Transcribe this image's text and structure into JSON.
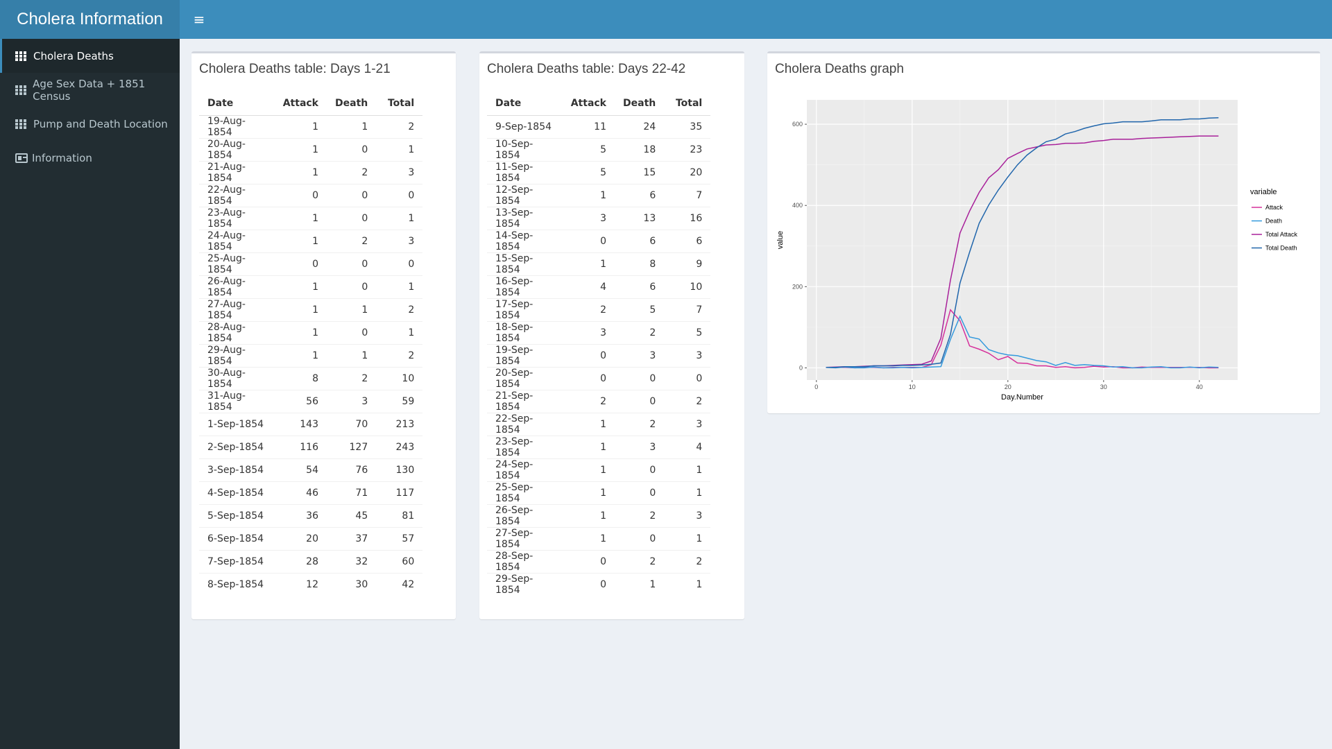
{
  "app": {
    "title": "Cholera Information",
    "menu_icon": "hamburger-icon"
  },
  "sidebar": {
    "items": [
      {
        "label": "Cholera Deaths",
        "icon": "table-icon",
        "active": true
      },
      {
        "label": "Age Sex Data + 1851 Census",
        "icon": "table-icon",
        "active": false
      },
      {
        "label": "Pump and Death Location",
        "icon": "table-icon",
        "active": false
      },
      {
        "label": "Information",
        "icon": "id-card-icon",
        "active": false
      }
    ]
  },
  "table1": {
    "title": "Cholera Deaths table: Days 1-21",
    "headers": [
      "Date",
      "Attack",
      "Death",
      "Total"
    ],
    "rows": [
      [
        "19-Aug-1854",
        "1",
        "1",
        "2"
      ],
      [
        "20-Aug-1854",
        "1",
        "0",
        "1"
      ],
      [
        "21-Aug-1854",
        "1",
        "2",
        "3"
      ],
      [
        "22-Aug-1854",
        "0",
        "0",
        "0"
      ],
      [
        "23-Aug-1854",
        "1",
        "0",
        "1"
      ],
      [
        "24-Aug-1854",
        "1",
        "2",
        "3"
      ],
      [
        "25-Aug-1854",
        "0",
        "0",
        "0"
      ],
      [
        "26-Aug-1854",
        "1",
        "0",
        "1"
      ],
      [
        "27-Aug-1854",
        "1",
        "1",
        "2"
      ],
      [
        "28-Aug-1854",
        "1",
        "0",
        "1"
      ],
      [
        "29-Aug-1854",
        "1",
        "1",
        "2"
      ],
      [
        "30-Aug-1854",
        "8",
        "2",
        "10"
      ],
      [
        "31-Aug-1854",
        "56",
        "3",
        "59"
      ],
      [
        "1-Sep-1854",
        "143",
        "70",
        "213"
      ],
      [
        "2-Sep-1854",
        "116",
        "127",
        "243"
      ],
      [
        "3-Sep-1854",
        "54",
        "76",
        "130"
      ],
      [
        "4-Sep-1854",
        "46",
        "71",
        "117"
      ],
      [
        "5-Sep-1854",
        "36",
        "45",
        "81"
      ],
      [
        "6-Sep-1854",
        "20",
        "37",
        "57"
      ],
      [
        "7-Sep-1854",
        "28",
        "32",
        "60"
      ],
      [
        "8-Sep-1854",
        "12",
        "30",
        "42"
      ]
    ]
  },
  "table2": {
    "title": "Cholera Deaths table: Days 22-42",
    "headers": [
      "Date",
      "Attack",
      "Death",
      "Total"
    ],
    "rows": [
      [
        "9-Sep-1854",
        "11",
        "24",
        "35"
      ],
      [
        "10-Sep-1854",
        "5",
        "18",
        "23"
      ],
      [
        "11-Sep-1854",
        "5",
        "15",
        "20"
      ],
      [
        "12-Sep-1854",
        "1",
        "6",
        "7"
      ],
      [
        "13-Sep-1854",
        "3",
        "13",
        "16"
      ],
      [
        "14-Sep-1854",
        "0",
        "6",
        "6"
      ],
      [
        "15-Sep-1854",
        "1",
        "8",
        "9"
      ],
      [
        "16-Sep-1854",
        "4",
        "6",
        "10"
      ],
      [
        "17-Sep-1854",
        "2",
        "5",
        "7"
      ],
      [
        "18-Sep-1854",
        "3",
        "2",
        "5"
      ],
      [
        "19-Sep-1854",
        "0",
        "3",
        "3"
      ],
      [
        "20-Sep-1854",
        "0",
        "0",
        "0"
      ],
      [
        "21-Sep-1854",
        "2",
        "0",
        "2"
      ],
      [
        "22-Sep-1854",
        "1",
        "2",
        "3"
      ],
      [
        "23-Sep-1854",
        "1",
        "3",
        "4"
      ],
      [
        "24-Sep-1854",
        "1",
        "0",
        "1"
      ],
      [
        "25-Sep-1854",
        "1",
        "0",
        "1"
      ],
      [
        "26-Sep-1854",
        "1",
        "2",
        "3"
      ],
      [
        "27-Sep-1854",
        "1",
        "0",
        "1"
      ],
      [
        "28-Sep-1854",
        "0",
        "2",
        "2"
      ],
      [
        "29-Sep-1854",
        "0",
        "1",
        "1"
      ]
    ]
  },
  "graph": {
    "title": "Cholera Deaths graph"
  },
  "chart_data": {
    "type": "line",
    "xlabel": "Day.Number",
    "ylabel": "value",
    "xlim": [
      0,
      42
    ],
    "ylim": [
      0,
      620
    ],
    "xticks": [
      0,
      10,
      20,
      30,
      40
    ],
    "yticks": [
      0,
      200,
      400,
      600
    ],
    "grid": true,
    "legend_title": "variable",
    "legend_position": "right",
    "x": [
      1,
      2,
      3,
      4,
      5,
      6,
      7,
      8,
      9,
      10,
      11,
      12,
      13,
      14,
      15,
      16,
      17,
      18,
      19,
      20,
      21,
      22,
      23,
      24,
      25,
      26,
      27,
      28,
      29,
      30,
      31,
      32,
      33,
      34,
      35,
      36,
      37,
      38,
      39,
      40,
      41,
      42
    ],
    "series": [
      {
        "name": "Attack",
        "color": "#d6309b",
        "values": [
          1,
          1,
          1,
          0,
          1,
          1,
          0,
          1,
          1,
          1,
          1,
          8,
          56,
          143,
          116,
          54,
          46,
          36,
          20,
          28,
          12,
          11,
          5,
          5,
          1,
          3,
          0,
          1,
          4,
          2,
          3,
          0,
          0,
          2,
          1,
          1,
          1,
          1,
          1,
          1,
          0,
          0
        ]
      },
      {
        "name": "Death",
        "color": "#3399dd",
        "values": [
          1,
          0,
          2,
          0,
          0,
          2,
          0,
          0,
          1,
          0,
          1,
          2,
          3,
          70,
          127,
          76,
          71,
          45,
          37,
          32,
          30,
          24,
          18,
          15,
          6,
          13,
          6,
          8,
          6,
          5,
          2,
          3,
          0,
          0,
          2,
          3,
          0,
          0,
          2,
          0,
          2,
          1
        ]
      },
      {
        "name": "Total Attack",
        "color": "#a8209a",
        "values": [
          1,
          2,
          3,
          3,
          4,
          5,
          5,
          6,
          7,
          8,
          9,
          17,
          73,
          216,
          332,
          386,
          432,
          468,
          488,
          516,
          528,
          539,
          544,
          549,
          550,
          553,
          553,
          554,
          558,
          560,
          563,
          563,
          563,
          565,
          566,
          567,
          568,
          569,
          570,
          571,
          571,
          571
        ]
      },
      {
        "name": "Total Death",
        "color": "#2166ac",
        "values": [
          1,
          1,
          3,
          3,
          3,
          5,
          5,
          5,
          6,
          6,
          7,
          9,
          12,
          82,
          209,
          285,
          356,
          401,
          438,
          470,
          500,
          524,
          542,
          557,
          563,
          576,
          582,
          590,
          596,
          601,
          603,
          606,
          606,
          606,
          608,
          611,
          611,
          611,
          613,
          613,
          615,
          616
        ]
      }
    ]
  }
}
